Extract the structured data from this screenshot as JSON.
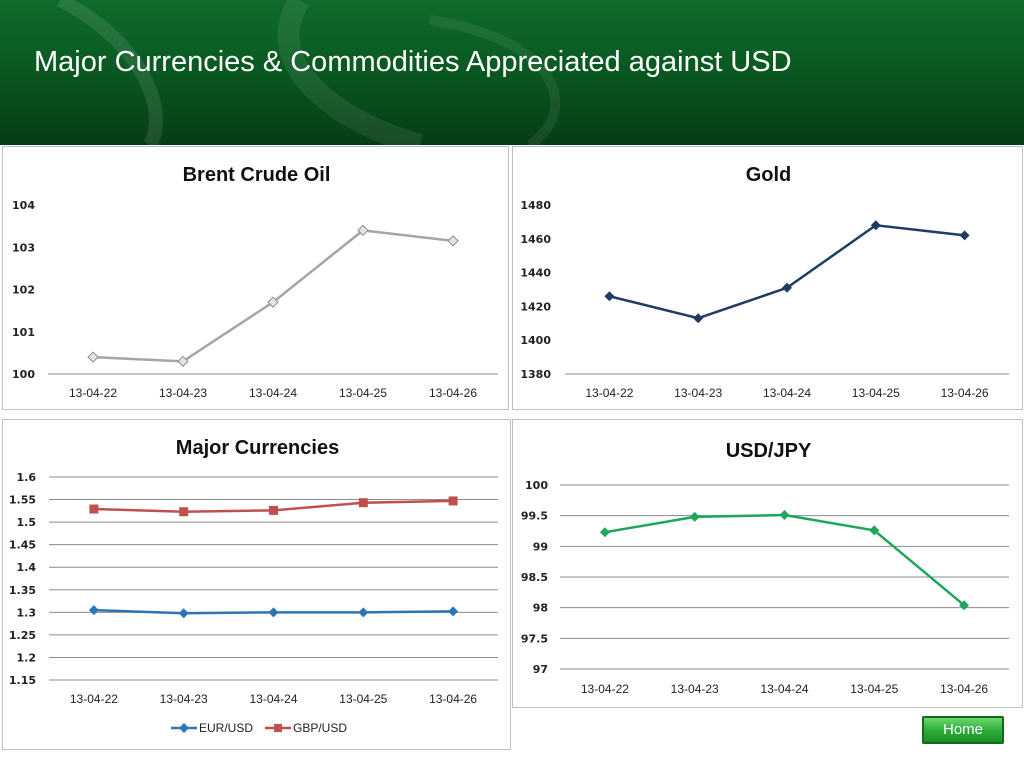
{
  "page": {
    "title": "Major Currencies & Commodities Appreciated against USD"
  },
  "nav": {
    "home_label": "Home"
  },
  "colors": {
    "header_green": "#0a5a22",
    "oil": "#a6a6a6",
    "gold": "#1f3d63",
    "eur": "#2e75b6",
    "gbp": "#c0504d",
    "jpy": "#1fa65a"
  },
  "chart_data": [
    {
      "id": "oil",
      "type": "line",
      "title": "Brent Crude Oil",
      "categories": [
        "13-04-22",
        "13-04-23",
        "13-04-24",
        "13-04-25",
        "13-04-26"
      ],
      "series": [
        {
          "values": [
            100.4,
            100.3,
            101.7,
            103.4,
            103.15
          ],
          "color": "#a6a6a6",
          "marker": "diamond-open"
        }
      ],
      "ylim": [
        100,
        104
      ],
      "yticks": [
        "100",
        "101",
        "102",
        "103",
        "104"
      ],
      "grid": false,
      "legend": false
    },
    {
      "id": "gold",
      "type": "line",
      "title": "Gold",
      "categories": [
        "13-04-22",
        "13-04-23",
        "13-04-24",
        "13-04-25",
        "13-04-26"
      ],
      "series": [
        {
          "values": [
            1426,
            1413,
            1431,
            1468,
            1462
          ],
          "color": "#1f3d63",
          "marker": "diamond"
        }
      ],
      "ylim": [
        1380,
        1480
      ],
      "yticks": [
        "1380",
        "1400",
        "1420",
        "1440",
        "1460",
        "1480"
      ],
      "grid": false,
      "legend": false
    },
    {
      "id": "fx",
      "type": "line",
      "title": "Major Currencies",
      "categories": [
        "13-04-22",
        "13-04-23",
        "13-04-24",
        "13-04-25",
        "13-04-26"
      ],
      "series": [
        {
          "name": "EUR/USD",
          "values": [
            1.305,
            1.298,
            1.3,
            1.3,
            1.302
          ],
          "color": "#2e75b6",
          "marker": "diamond"
        },
        {
          "name": "GBP/USD",
          "values": [
            1.529,
            1.523,
            1.526,
            1.543,
            1.547
          ],
          "color": "#c0504d",
          "marker": "square"
        }
      ],
      "ylim": [
        1.15,
        1.6
      ],
      "yticks": [
        "1.15",
        "1.2",
        "1.25",
        "1.3",
        "1.35",
        "1.4",
        "1.45",
        "1.5",
        "1.55",
        "1.6"
      ],
      "grid": true,
      "legend": "bottom"
    },
    {
      "id": "jpy",
      "type": "line",
      "title": "USD/JPY",
      "categories": [
        "13-04-22",
        "13-04-23",
        "13-04-24",
        "13-04-25",
        "13-04-26"
      ],
      "series": [
        {
          "values": [
            99.23,
            99.48,
            99.51,
            99.26,
            98.04
          ],
          "color": "#1fa65a",
          "marker": "diamond"
        }
      ],
      "ylim": [
        97,
        100
      ],
      "yticks": [
        "97",
        "97.5",
        "98",
        "98.5",
        "99",
        "99.5",
        "100"
      ],
      "grid": true,
      "legend": false
    }
  ]
}
